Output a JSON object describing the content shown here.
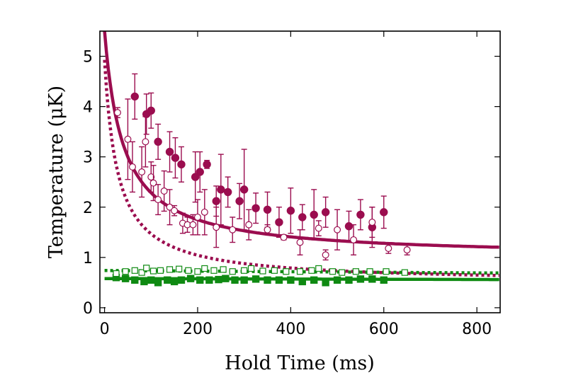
{
  "chart_data": {
    "type": "scatter",
    "title": "",
    "xlabel": "Hold Time (ms)",
    "ylabel": "Temperature (μK)",
    "xlim": [
      -10,
      850
    ],
    "ylim": [
      -0.1,
      5.5
    ],
    "x_ticks": [
      0,
      200,
      400,
      600,
      800
    ],
    "y_ticks": [
      0,
      1,
      2,
      3,
      4,
      5
    ],
    "colors": {
      "magenta": "#9b0d4f",
      "green": "#0f8a12"
    },
    "series": [
      {
        "name": "magenta filled",
        "marker": "circle",
        "filled": true,
        "color": "#9b0d4f",
        "points": [
          {
            "x": 65,
            "y": 4.2,
            "err": 0.45
          },
          {
            "x": 90,
            "y": 3.85,
            "err": 0.4
          },
          {
            "x": 100,
            "y": 3.92,
            "err": 0.35
          },
          {
            "x": 115,
            "y": 3.3,
            "err": 0.35
          },
          {
            "x": 140,
            "y": 3.1,
            "err": 0.4
          },
          {
            "x": 152,
            "y": 2.98,
            "err": 0.4
          },
          {
            "x": 165,
            "y": 2.85,
            "err": 0.35
          },
          {
            "x": 195,
            "y": 2.6,
            "err": 0.5
          },
          {
            "x": 205,
            "y": 2.7,
            "err": 0.4
          },
          {
            "x": 220,
            "y": 2.85,
            "err": 0.08
          },
          {
            "x": 240,
            "y": 2.12,
            "err": 0.3
          },
          {
            "x": 250,
            "y": 2.35,
            "err": 0.7
          },
          {
            "x": 265,
            "y": 2.3,
            "err": 0.3
          },
          {
            "x": 290,
            "y": 2.12,
            "err": 0.35
          },
          {
            "x": 300,
            "y": 2.35,
            "err": 0.8
          },
          {
            "x": 325,
            "y": 1.98,
            "err": 0.3
          },
          {
            "x": 350,
            "y": 1.95,
            "err": 0.35
          },
          {
            "x": 375,
            "y": 1.7,
            "err": 0.3
          },
          {
            "x": 400,
            "y": 1.93,
            "err": 0.45
          },
          {
            "x": 425,
            "y": 1.8,
            "err": 0.25
          },
          {
            "x": 450,
            "y": 1.85,
            "err": 0.5
          },
          {
            "x": 475,
            "y": 1.9,
            "err": 0.3
          },
          {
            "x": 525,
            "y": 1.62,
            "err": 0.3
          },
          {
            "x": 550,
            "y": 1.85,
            "err": 0.3
          },
          {
            "x": 575,
            "y": 1.6,
            "err": 0.4
          },
          {
            "x": 600,
            "y": 1.9,
            "err": 0.32
          }
        ]
      },
      {
        "name": "magenta open",
        "marker": "circle",
        "filled": false,
        "color": "#9b0d4f",
        "points": [
          {
            "x": 28,
            "y": 3.88,
            "err": 0.1
          },
          {
            "x": 50,
            "y": 3.35,
            "err": 0.8
          },
          {
            "x": 60,
            "y": 2.8,
            "err": 0.5
          },
          {
            "x": 80,
            "y": 2.7,
            "err": 0.5
          },
          {
            "x": 88,
            "y": 3.3,
            "err": 0.5
          },
          {
            "x": 100,
            "y": 2.6,
            "err": 0.3
          },
          {
            "x": 105,
            "y": 2.48,
            "err": 0.35
          },
          {
            "x": 115,
            "y": 2.15,
            "err": 0.3
          },
          {
            "x": 128,
            "y": 2.32,
            "err": 0.4
          },
          {
            "x": 140,
            "y": 2.0,
            "err": 0.35
          },
          {
            "x": 150,
            "y": 1.93,
            "err": 0.1
          },
          {
            "x": 168,
            "y": 1.68,
            "err": 0.2
          },
          {
            "x": 178,
            "y": 1.65,
            "err": 0.15
          },
          {
            "x": 190,
            "y": 1.65,
            "err": 0.2
          },
          {
            "x": 200,
            "y": 1.8,
            "err": 0.35
          },
          {
            "x": 215,
            "y": 1.9,
            "err": 0.45
          },
          {
            "x": 240,
            "y": 1.6,
            "err": 0.4
          },
          {
            "x": 275,
            "y": 1.55,
            "err": 0.25
          },
          {
            "x": 310,
            "y": 1.65,
            "err": 0.3
          },
          {
            "x": 350,
            "y": 1.55,
            "err": 0.1
          },
          {
            "x": 385,
            "y": 1.4,
            "err": 0.05
          },
          {
            "x": 420,
            "y": 1.3,
            "err": 0.25
          },
          {
            "x": 460,
            "y": 1.58,
            "err": 0.15
          },
          {
            "x": 475,
            "y": 1.05,
            "err": 0.1
          },
          {
            "x": 500,
            "y": 1.55,
            "err": 0.4
          },
          {
            "x": 535,
            "y": 1.35,
            "err": 0.3
          },
          {
            "x": 575,
            "y": 1.7,
            "err": 0.3
          },
          {
            "x": 610,
            "y": 1.18,
            "err": 0.1
          },
          {
            "x": 650,
            "y": 1.15,
            "err": 0.1
          }
        ]
      },
      {
        "name": "green filled",
        "marker": "square",
        "filled": true,
        "color": "#0f8a12",
        "points": [
          {
            "x": 25,
            "y": 0.6
          },
          {
            "x": 45,
            "y": 0.58
          },
          {
            "x": 65,
            "y": 0.55
          },
          {
            "x": 85,
            "y": 0.52
          },
          {
            "x": 100,
            "y": 0.55
          },
          {
            "x": 115,
            "y": 0.5
          },
          {
            "x": 135,
            "y": 0.55
          },
          {
            "x": 150,
            "y": 0.52
          },
          {
            "x": 165,
            "y": 0.55
          },
          {
            "x": 185,
            "y": 0.58
          },
          {
            "x": 205,
            "y": 0.55
          },
          {
            "x": 225,
            "y": 0.55
          },
          {
            "x": 245,
            "y": 0.56
          },
          {
            "x": 260,
            "y": 0.58
          },
          {
            "x": 280,
            "y": 0.55
          },
          {
            "x": 300,
            "y": 0.55
          },
          {
            "x": 325,
            "y": 0.57
          },
          {
            "x": 350,
            "y": 0.55
          },
          {
            "x": 375,
            "y": 0.55
          },
          {
            "x": 400,
            "y": 0.55
          },
          {
            "x": 425,
            "y": 0.52
          },
          {
            "x": 450,
            "y": 0.55
          },
          {
            "x": 475,
            "y": 0.5
          },
          {
            "x": 500,
            "y": 0.55
          },
          {
            "x": 525,
            "y": 0.55
          },
          {
            "x": 550,
            "y": 0.57
          },
          {
            "x": 575,
            "y": 0.57
          },
          {
            "x": 600,
            "y": 0.55
          }
        ]
      },
      {
        "name": "green open",
        "marker": "square",
        "filled": false,
        "color": "#0f8a12",
        "points": [
          {
            "x": 25,
            "y": 0.68
          },
          {
            "x": 45,
            "y": 0.72
          },
          {
            "x": 65,
            "y": 0.74
          },
          {
            "x": 80,
            "y": 0.7
          },
          {
            "x": 90,
            "y": 0.79
          },
          {
            "x": 105,
            "y": 0.73
          },
          {
            "x": 120,
            "y": 0.74
          },
          {
            "x": 140,
            "y": 0.76
          },
          {
            "x": 160,
            "y": 0.77
          },
          {
            "x": 180,
            "y": 0.74
          },
          {
            "x": 200,
            "y": 0.72
          },
          {
            "x": 215,
            "y": 0.78
          },
          {
            "x": 235,
            "y": 0.74
          },
          {
            "x": 255,
            "y": 0.76
          },
          {
            "x": 275,
            "y": 0.72
          },
          {
            "x": 300,
            "y": 0.74
          },
          {
            "x": 315,
            "y": 0.78
          },
          {
            "x": 340,
            "y": 0.73
          },
          {
            "x": 365,
            "y": 0.74
          },
          {
            "x": 390,
            "y": 0.72
          },
          {
            "x": 420,
            "y": 0.72
          },
          {
            "x": 445,
            "y": 0.74
          },
          {
            "x": 460,
            "y": 0.78
          },
          {
            "x": 490,
            "y": 0.72
          },
          {
            "x": 510,
            "y": 0.7
          },
          {
            "x": 540,
            "y": 0.72
          },
          {
            "x": 570,
            "y": 0.72
          },
          {
            "x": 605,
            "y": 0.72
          },
          {
            "x": 645,
            "y": 0.7
          }
        ]
      }
    ],
    "fits": [
      {
        "name": "magenta solid fit",
        "color": "#9b0d4f",
        "style": "solid",
        "model": "a + b/(x + c)",
        "a": 1.0,
        "b": 180,
        "c": 40
      },
      {
        "name": "magenta dotted fit",
        "color": "#9b0d4f",
        "style": "dotted",
        "model": "a + b/(x + c)",
        "a": 0.5,
        "b": 124,
        "c": 28
      },
      {
        "name": "green solid fit",
        "color": "#0f8a12",
        "style": "solid",
        "model": "linear",
        "y0": 0.58,
        "y1": 0.56
      },
      {
        "name": "green dotted fit",
        "color": "#0f8a12",
        "style": "dotted",
        "model": "linear",
        "y0": 0.74,
        "y1": 0.69
      }
    ]
  }
}
